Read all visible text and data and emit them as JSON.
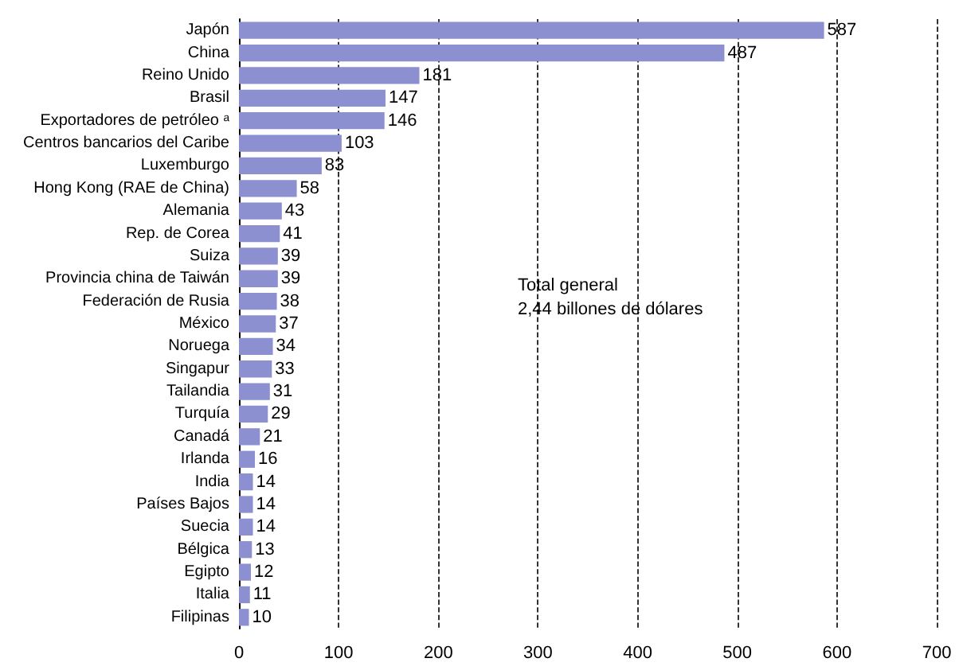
{
  "chart_data": {
    "type": "bar",
    "orientation": "horizontal",
    "categories": [
      "Japón",
      "China",
      "Reino Unido",
      "Brasil",
      "Exportadores de petróleo ᵃ",
      "Centros bancarios del Caribe",
      "Luxemburgo",
      "Hong Kong (RAE de China)",
      "Alemania",
      "Rep. de Corea",
      "Suiza",
      "Provincia china de Taiwán",
      "Federación de Rusia",
      "México",
      "Noruega",
      "Singapur",
      "Tailandia",
      "Turquía",
      "Canadá",
      "Irlanda",
      "India",
      "Países Bajos",
      "Suecia",
      "Bélgica",
      "Egipto",
      "Italia",
      "Filipinas"
    ],
    "values": [
      587,
      487,
      181,
      147,
      146,
      103,
      83,
      58,
      43,
      41,
      39,
      39,
      38,
      37,
      34,
      33,
      31,
      29,
      21,
      16,
      14,
      14,
      14,
      13,
      12,
      11,
      10
    ],
    "color": "#8c8fd0",
    "xlim": [
      0,
      700
    ],
    "xticks": [
      0,
      100,
      200,
      300,
      400,
      500,
      600,
      700
    ],
    "grid": "x",
    "data_labels": true,
    "annotations": [
      "Total general\n2,44 billones de dólares"
    ]
  }
}
